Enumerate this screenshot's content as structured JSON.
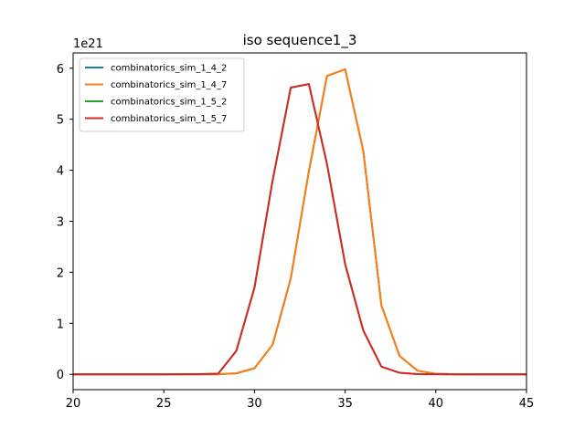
{
  "chart_data": {
    "type": "line",
    "title": "iso sequence1_3",
    "xlabel": "",
    "ylabel": "",
    "offset_text": "1e21",
    "xlim": [
      20,
      45
    ],
    "ylim": [
      -0.3,
      6.3
    ],
    "x_ticks": [
      20,
      25,
      30,
      35,
      40,
      45
    ],
    "y_ticks": [
      0,
      1,
      2,
      3,
      4,
      5,
      6
    ],
    "grid": false,
    "legend_position": "upper-left",
    "x": [
      20,
      21,
      22,
      23,
      24,
      25,
      26,
      27,
      28,
      29,
      30,
      31,
      32,
      33,
      34,
      35,
      36,
      37,
      38,
      39,
      40,
      41,
      42,
      43,
      44,
      45
    ],
    "series": [
      {
        "name": "combinatorics_sim_1_4_2",
        "color": "#1f77b4",
        "values": [
          0,
          0,
          0,
          0,
          0,
          0,
          0,
          0,
          0.002,
          0.02,
          0.12,
          0.58,
          1.88,
          3.98,
          5.85,
          5.98,
          4.38,
          1.35,
          0.36,
          0.07,
          0.012,
          0.002,
          0,
          0,
          0,
          0
        ]
      },
      {
        "name": "combinatorics_sim_1_4_7",
        "color": "#ff7f0e",
        "values": [
          0,
          0,
          0,
          0,
          0,
          0,
          0,
          0,
          0.002,
          0.02,
          0.12,
          0.58,
          1.88,
          3.98,
          5.85,
          5.98,
          4.38,
          1.35,
          0.36,
          0.07,
          0.012,
          0.002,
          0,
          0,
          0,
          0
        ]
      },
      {
        "name": "combinatorics_sim_1_5_2",
        "color": "#2ca02c",
        "values": [
          0,
          0,
          0,
          0,
          0,
          0,
          0.002,
          0.005,
          0.012,
          0.46,
          1.7,
          3.8,
          5.62,
          5.69,
          4.12,
          2.16,
          0.86,
          0.15,
          0.03,
          0.005,
          0.001,
          0,
          0,
          0,
          0,
          0
        ]
      },
      {
        "name": "combinatorics_sim_1_5_7",
        "color": "#d62728",
        "values": [
          0,
          0,
          0,
          0,
          0,
          0,
          0.002,
          0.005,
          0.012,
          0.46,
          1.7,
          3.8,
          5.62,
          5.69,
          4.12,
          2.16,
          0.86,
          0.15,
          0.03,
          0.005,
          0.001,
          0,
          0,
          0,
          0,
          0
        ]
      }
    ]
  }
}
